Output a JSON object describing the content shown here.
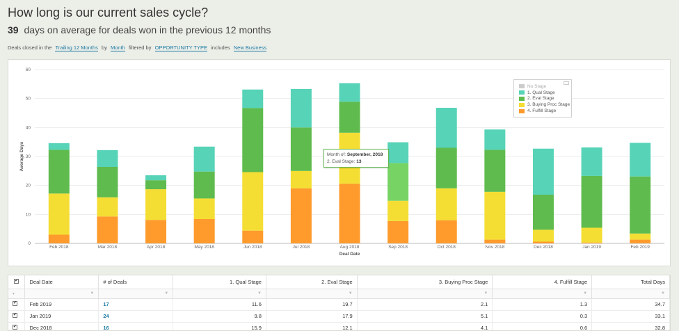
{
  "header": {
    "title": "How long is our current sales cycle?",
    "summary_value": "39",
    "summary_text": "days on average for deals won in the previous 12 months"
  },
  "filters": {
    "prefix": "Deals closed in the",
    "period": "Trailing 12 Months",
    "by_label": "by",
    "grouping": "Month",
    "filtered_by_label": "filtered by",
    "field": "OPPORTUNITY TYPE",
    "includes_label": "includes",
    "value": "New Business"
  },
  "legend": {
    "items": [
      {
        "label": "No Stage",
        "color": "#cccccc"
      },
      {
        "label": "1. Qual Stage",
        "color": "#57d3b7"
      },
      {
        "label": "2. Eval Stage",
        "color": "#5fbb4e"
      },
      {
        "label": "3. Buying Proc Stage",
        "color": "#f4de34"
      },
      {
        "label": "4. Fulfill Stage",
        "color": "#fe9b2c"
      }
    ]
  },
  "tooltip": {
    "line1_label": "Month of:",
    "line1_value": "September, 2018",
    "line2_label": "2. Eval Stage:",
    "line2_value": "13"
  },
  "chart_data": {
    "type": "bar",
    "stacked": true,
    "categories": [
      "Feb 2018",
      "Mar 2018",
      "Apr 2018",
      "May 2018",
      "Jun 2018",
      "Jul 2018",
      "Aug 2018",
      "Sep 2018",
      "Oct 2018",
      "Nov 2018",
      "Dec 2018",
      "Jan 2019",
      "Feb 2019"
    ],
    "series": [
      {
        "name": "4. Fulfill Stage",
        "color": "#fe9b2c",
        "values": [
          3,
          9.3,
          8.1,
          8.4,
          4.4,
          19,
          20.6,
          7.7,
          8,
          1.3,
          0.6,
          0.3,
          1.3
        ]
      },
      {
        "name": "3. Buying Proc Stage",
        "color": "#f4de34",
        "values": [
          14.2,
          6.6,
          10.6,
          7.1,
          20.2,
          6,
          17.6,
          7,
          11,
          16.5,
          4.1,
          5.1,
          2.1
        ]
      },
      {
        "name": "2. Eval Stage",
        "color": "#5fbb4e",
        "values": [
          15.1,
          10.5,
          3.1,
          9.3,
          22.1,
          15,
          10.7,
          13,
          14,
          14.5,
          12.1,
          17.9,
          19.7
        ]
      },
      {
        "name": "1. Qual Stage",
        "color": "#57d3b7",
        "values": [
          2.3,
          5.8,
          1.7,
          8.6,
          6.4,
          13.3,
          6.4,
          7.2,
          13.8,
          7,
          15.9,
          9.8,
          11.6
        ]
      }
    ],
    "highlight": {
      "category": "Sep 2018",
      "series": "2. Eval Stage",
      "color": "#77d464"
    },
    "title": "",
    "xlabel": "Deal Date",
    "ylabel": "Average Days",
    "ylim": [
      0,
      60
    ],
    "yticks": [
      0,
      10,
      20,
      30,
      40,
      50,
      60
    ],
    "grid": true,
    "legend_position": "top-right"
  },
  "table": {
    "columns": [
      "Deal Date",
      "# of Deals",
      "1. Qual Stage",
      "2. Eval Stage",
      "3. Buying Proc Stage",
      "4. Fulfill Stage",
      "Total Days"
    ],
    "rows": [
      {
        "date": "Feb 2019",
        "deals": "17",
        "qual": "11.6",
        "eval": "19.7",
        "buying": "2.1",
        "fulfill": "1.3",
        "total": "34.7"
      },
      {
        "date": "Jan 2019",
        "deals": "24",
        "qual": "9.8",
        "eval": "17.9",
        "buying": "5.1",
        "fulfill": "0.3",
        "total": "33.1"
      },
      {
        "date": "Dec 2018",
        "deals": "16",
        "qual": "15.9",
        "eval": "12.1",
        "buying": "4.1",
        "fulfill": "0.6",
        "total": "32.8"
      }
    ]
  }
}
